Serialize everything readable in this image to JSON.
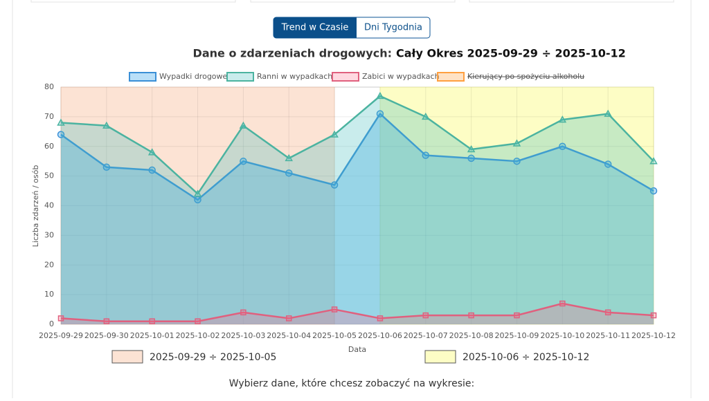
{
  "tabs": [
    "Trend w Czasie",
    "Dni Tygodnia"
  ],
  "chart_data": {
    "type": "line",
    "title": "Dane o zdarzeniach drogowych:",
    "subtitle": "Cały Okres 2025-09-29 ÷ 2025-10-12",
    "x_label": "Data",
    "y_label": "Liczba zdarzeń / osób",
    "categories": [
      "2025-09-29",
      "2025-09-30",
      "2025-10-01",
      "2025-10-02",
      "2025-10-03",
      "2025-10-04",
      "2025-10-05",
      "2025-10-06",
      "2025-10-07",
      "2025-10-08",
      "2025-10-09",
      "2025-10-10",
      "2025-10-11",
      "2025-10-12"
    ],
    "series": [
      {
        "name": "Wypadki drogowe",
        "color": "#3a8fd6",
        "fill": "rgba(54,162,235,0.35)",
        "marker": "circle",
        "values": [
          64,
          53,
          52,
          42,
          55,
          51,
          47,
          71,
          57,
          56,
          55,
          60,
          54,
          45
        ]
      },
      {
        "name": "Ranni w wypadkach",
        "color": "#4bb3a0",
        "fill": "rgba(75,192,192,0.3)",
        "marker": "triangle",
        "values": [
          68,
          67,
          58,
          44,
          67,
          56,
          64,
          77,
          70,
          59,
          61,
          69,
          71,
          55
        ]
      },
      {
        "name": "Zabici w wypadkach",
        "color": "#e0607e",
        "fill": "rgba(255,99,132,0.25)",
        "marker": "square",
        "values": [
          2,
          1,
          1,
          1,
          4,
          2,
          5,
          2,
          3,
          3,
          3,
          7,
          4,
          3
        ]
      },
      {
        "name": "Kierujący po spożyciu alkoholu",
        "color": "#ff9f40",
        "fill": "rgba(255,159,64,0.3)",
        "hidden": true
      }
    ],
    "regions": [
      {
        "start": 0,
        "end": 6,
        "label": "2025-09-29 ÷ 2025-10-05",
        "color": "rgba(250,200,170,0.5)"
      },
      {
        "start": 7,
        "end": 13,
        "label": "2025-10-06 ÷ 2025-10-12",
        "color": "rgba(252,252,150,0.55)"
      }
    ],
    "ylim": [
      0,
      80
    ],
    "yticks": [
      0,
      10,
      20,
      30,
      40,
      50,
      60,
      70,
      80
    ],
    "grid": true
  },
  "prompt": "Wybierz dane, które chcesz zobaczyć na wykresie:"
}
